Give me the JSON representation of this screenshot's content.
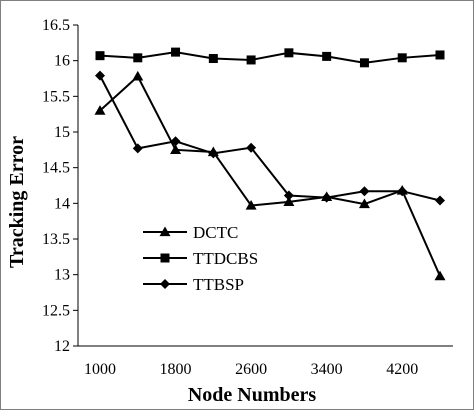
{
  "chart_data": {
    "type": "line",
    "title": "",
    "xlabel": "Node Numbers",
    "ylabel": "Tracking Error",
    "x": [
      1000,
      1400,
      1800,
      2200,
      2600,
      3000,
      3400,
      3800,
      4200,
      4600
    ],
    "x_ticks": [
      "1000",
      "1800",
      "2600",
      "3400",
      "4200"
    ],
    "xlim": [
      1000,
      4600
    ],
    "ylim": [
      12,
      16.5
    ],
    "y_ticks": [
      "12",
      "12.5",
      "13",
      "13.5",
      "14",
      "14.5",
      "15",
      "15.5",
      "16",
      "16.5"
    ],
    "grid": false,
    "legend_position": "lower-left",
    "series": [
      {
        "name": "DCTC",
        "marker": "triangle",
        "color": "#000000",
        "values": [
          15.3,
          15.78,
          14.75,
          14.72,
          13.97,
          14.02,
          14.09,
          13.99,
          14.18,
          12.98
        ]
      },
      {
        "name": "TTDCBS",
        "marker": "square",
        "color": "#000000",
        "values": [
          16.07,
          16.04,
          16.12,
          16.03,
          16.01,
          16.11,
          16.06,
          15.97,
          16.04,
          16.08
        ]
      },
      {
        "name": "TTBSP",
        "marker": "diamond",
        "color": "#000000",
        "values": [
          15.79,
          14.77,
          14.87,
          14.7,
          14.78,
          14.11,
          14.08,
          14.17,
          14.17,
          14.04
        ]
      }
    ]
  }
}
